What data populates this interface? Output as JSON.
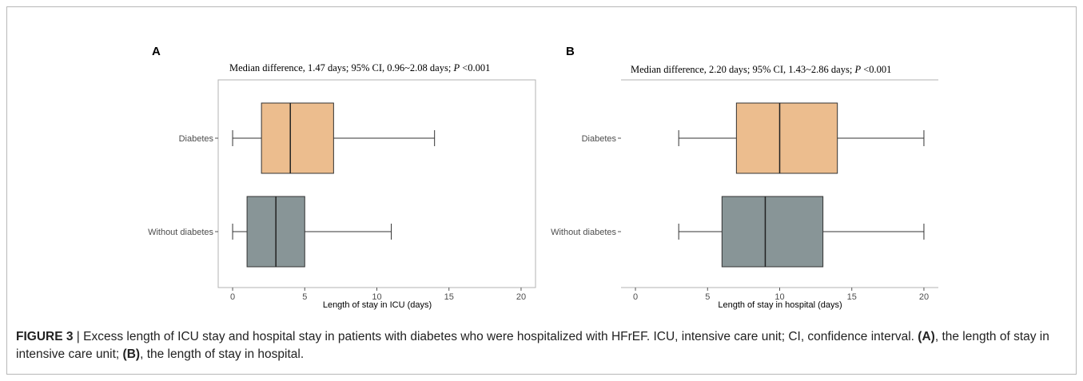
{
  "chart_data": [
    {
      "type": "boxplot",
      "panel_label": "A",
      "subtitle_main": "Median difference, 1.47 days; 95% CI, 0.96~2.08 days; ",
      "subtitle_p": "P",
      "subtitle_tail": " <0.001",
      "xlabel": "Length of stay in ICU (days)",
      "xlim": [
        -1,
        21
      ],
      "xticks": [
        0,
        5,
        10,
        15,
        20
      ],
      "orientation": "horizontal",
      "grid": false,
      "series": [
        {
          "name": "Diabetes",
          "min": 0,
          "q1": 2,
          "median": 4,
          "q3": 7,
          "max": 14,
          "color": "#ecbd8e"
        },
        {
          "name": "Without diabetes",
          "min": 0,
          "q1": 1,
          "median": 3,
          "q3": 5,
          "max": 11,
          "color": "#889597"
        }
      ]
    },
    {
      "type": "boxplot",
      "panel_label": "B",
      "subtitle_main": "Median difference, 2.20 days; 95% CI, 1.43~2.86 days; ",
      "subtitle_p": "P",
      "subtitle_tail": " <0.001",
      "xlabel": "Length of stay in hospital (days)",
      "xlim": [
        -1,
        21
      ],
      "xticks": [
        0,
        5,
        10,
        15,
        20
      ],
      "orientation": "horizontal",
      "grid": false,
      "series": [
        {
          "name": "Diabetes",
          "min": 3,
          "q1": 7,
          "median": 10,
          "q3": 14,
          "max": 20,
          "color": "#ecbd8e"
        },
        {
          "name": "Without diabetes",
          "min": 3,
          "q1": 6,
          "median": 9,
          "q3": 13,
          "max": 20,
          "color": "#889597"
        }
      ]
    }
  ],
  "caption": {
    "figure_label": "FIGURE 3",
    "separator": " | ",
    "text1": "Excess length of ICU stay and hospital stay in patients with diabetes who were hospitalized with HFrEF. ICU, intensive care unit; CI, confidence interval. ",
    "label_a": "(A)",
    "text2": ", the length of stay in intensive care unit; ",
    "label_b": "(B)",
    "text3": ", the length of stay in hospital."
  }
}
